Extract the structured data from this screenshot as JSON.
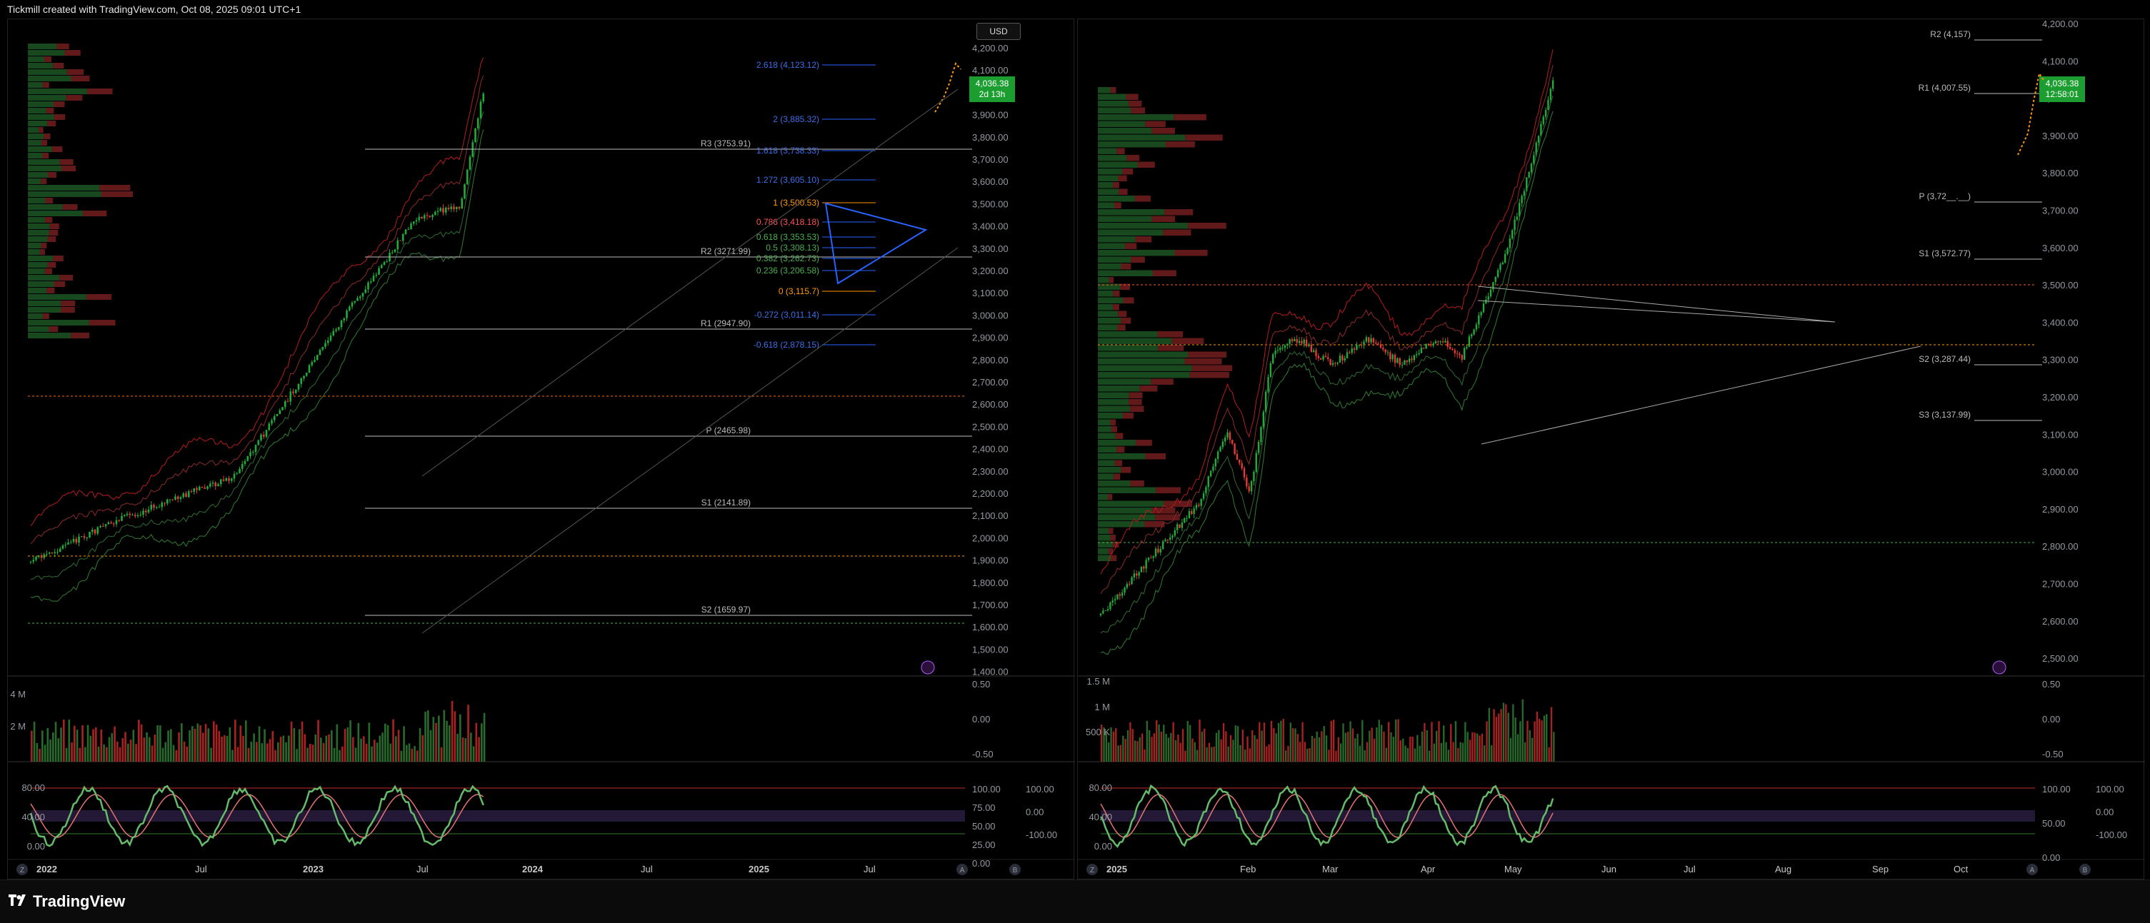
{
  "header": {
    "title": "Tickmill created with TradingView.com, Oct 08, 2025 09:01 UTC+1"
  },
  "footer": {
    "brand": "TradingView"
  },
  "left_chart": {
    "currency_button": "USD",
    "price_label": "4,036.38",
    "countdown": "2d 13h",
    "price_ticks": [
      "4,200.00",
      "4,100.00",
      "4,000.00",
      "3,900.00",
      "3,800.00",
      "3,700.00",
      "3,600.00",
      "3,500.00",
      "3,400.00",
      "3,300.00",
      "3,200.00",
      "3,100.00",
      "3,000.00",
      "2,900.00",
      "2,800.00",
      "2,700.00",
      "2,600.00",
      "2,500.00",
      "2,400.00",
      "2,300.00",
      "2,200.00",
      "2,100.00",
      "2,000.00",
      "1,900.00",
      "1,800.00",
      "1,700.00",
      "1,600.00",
      "1,500.00",
      "1,400.00"
    ],
    "pivots": [
      "R3 (3753.91)",
      "R2 (3271.99)",
      "R1 (2947.90)",
      "P (2465.98)",
      "S1 (2141.89)",
      "S2 (1659.97)"
    ],
    "fib_labels": [
      "2.618 (4,123.12)",
      "2 (3,885.32)",
      "1.618 (3,738.33)",
      "1.272 (3,605.10)",
      "1 (3,500.53)",
      "0.786 (3,418.18)",
      "0.618 (3,353.53)",
      "0.5 (3,308.13)",
      "0.382 (3,262.73)",
      "0.236 (3,206.58)",
      "0 (3,115.7)",
      "-0.272 (3,011.14)",
      "-0.618 (2,878.15)"
    ],
    "time_axis": [
      "2022",
      "Jul",
      "2023",
      "Jul",
      "2024",
      "Jul",
      "2025",
      "Jul"
    ],
    "volume_ticks": [
      "4 M",
      "2 M"
    ],
    "osc_right_ticks": [
      "0.50",
      "0.00",
      "-0.50"
    ],
    "stoch_left_ticks": [
      "80.00",
      "40.00",
      "0.00"
    ],
    "stoch_right_ticks": [
      "100.00",
      "75.00",
      "50.00",
      "25.00",
      "0.00"
    ],
    "stoch_right_ticks2": [
      "100.00",
      "0.00",
      "-100.00"
    ],
    "corner_buttons": [
      "Z",
      "A",
      "B"
    ]
  },
  "right_chart": {
    "price_label": "4,036.38",
    "countdown": "12:58:01",
    "price_ticks": [
      "4,200.00",
      "4,100.00",
      "4,000.00",
      "3,900.00",
      "3,800.00",
      "3,700.00",
      "3,600.00",
      "3,500.00",
      "3,400.00",
      "3,300.00",
      "3,200.00",
      "3,100.00",
      "3,000.00",
      "2,900.00",
      "2,800.00",
      "2,700.00",
      "2,600.00",
      "2,500.00"
    ],
    "pivots": [
      "R2 (4,157)",
      "R1 (4,007.55)",
      "P (3,72__.__)",
      "S1 (3,572.77)",
      "S2 (3,287.44)",
      "S3 (3,137.99)"
    ],
    "time_axis": [
      "2025",
      "Feb",
      "Mar",
      "Apr",
      "May",
      "Jun",
      "Jul",
      "Aug",
      "Sep",
      "Oct"
    ],
    "volume_ticks": [
      "1.5 M",
      "1 M",
      "500 K"
    ],
    "osc_right_ticks": [
      "0.50",
      "0.00",
      "-0.50"
    ],
    "stoch_left_ticks": [
      "80.00",
      "40.00",
      "0.00"
    ],
    "stoch_right_ticks": [
      "100.00",
      "50.00",
      "0.00"
    ],
    "stoch_right_ticks2": [
      "100.00",
      "0.00",
      "-100.00"
    ],
    "corner_buttons": [
      "Z",
      "A",
      "B"
    ]
  },
  "colors": {
    "up": "#22ab3a",
    "down": "#e53935",
    "fib_blue": "#2962ff",
    "orange": "#ff9800",
    "band_red": "#b71c1c",
    "band_green": "#2e7d32",
    "label_green": "#1b9e2f"
  },
  "icons": [
    "tradingview-logo-icon",
    "lightning-icon"
  ]
}
